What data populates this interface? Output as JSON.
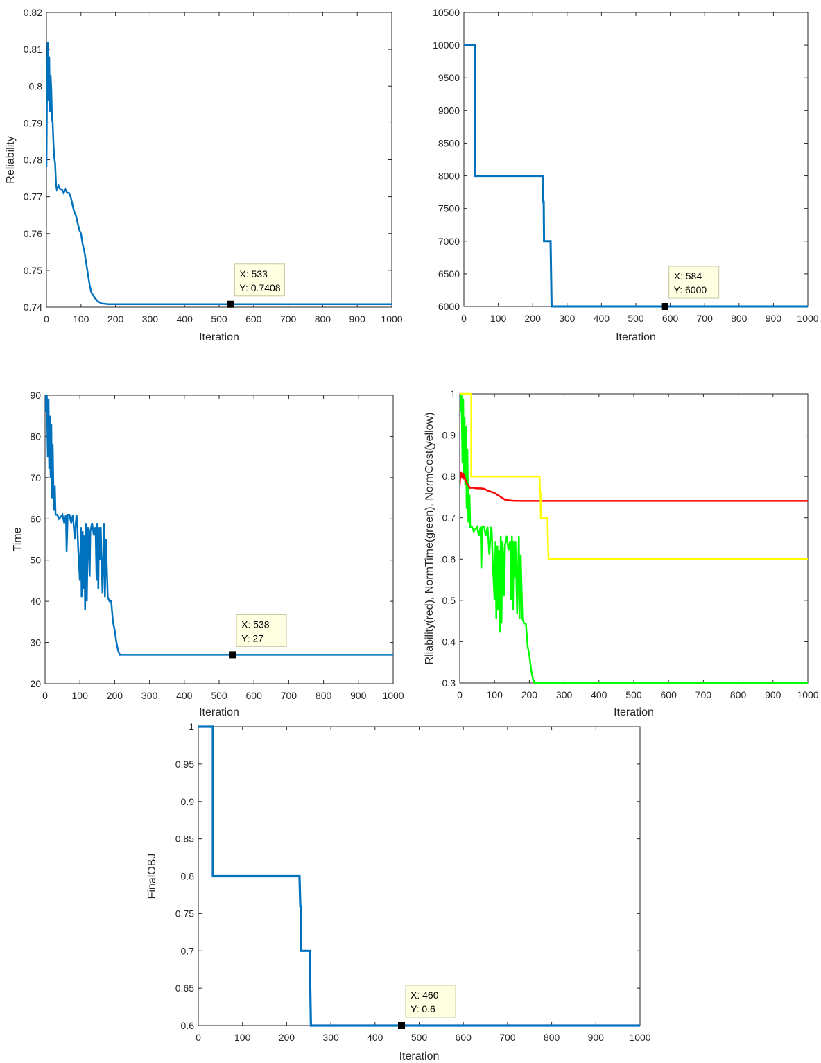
{
  "chart_data": [
    {
      "id": "reliability",
      "type": "line",
      "xlabel": "Iteration",
      "ylabel": "Reliability",
      "xlim": [
        0,
        1000
      ],
      "ylim": [
        0.74,
        0.82
      ],
      "xticks": [
        "0",
        "100",
        "200",
        "300",
        "400",
        "500",
        "600",
        "700",
        "800",
        "900",
        "1000"
      ],
      "yticks": [
        "0.74",
        "0.75",
        "0.76",
        "0.77",
        "0.78",
        "0.79",
        "0.8",
        "0.81",
        "0.82"
      ],
      "xtick_values": [
        0,
        100,
        200,
        300,
        400,
        500,
        600,
        700,
        800,
        900,
        1000
      ],
      "ytick_values": [
        0.74,
        0.75,
        0.76,
        0.77,
        0.78,
        0.79,
        0.8,
        0.81,
        0.82
      ],
      "grid": false,
      "series": [
        {
          "color": "#0072bd",
          "x": [
            0,
            2,
            4,
            6,
            8,
            10,
            12,
            14,
            16,
            18,
            20,
            22,
            25,
            28,
            30,
            35,
            40,
            45,
            50,
            55,
            60,
            65,
            70,
            75,
            80,
            85,
            90,
            95,
            100,
            105,
            110,
            115,
            120,
            125,
            130,
            140,
            150,
            160,
            170,
            180,
            200,
            250,
            300,
            400,
            500,
            533,
            600,
            700,
            800,
            900,
            1000
          ],
          "y": [
            0.778,
            0.805,
            0.812,
            0.796,
            0.808,
            0.793,
            0.803,
            0.799,
            0.791,
            0.79,
            0.785,
            0.781,
            0.779,
            0.773,
            0.772,
            0.773,
            0.772,
            0.772,
            0.771,
            0.772,
            0.771,
            0.771,
            0.77,
            0.768,
            0.766,
            0.765,
            0.763,
            0.761,
            0.76,
            0.757,
            0.755,
            0.752,
            0.749,
            0.746,
            0.744,
            0.7425,
            0.7415,
            0.741,
            0.7409,
            0.7408,
            0.7408,
            0.7408,
            0.7408,
            0.7408,
            0.7408,
            0.7408,
            0.7408,
            0.7408,
            0.7408,
            0.7408,
            0.7408
          ]
        }
      ],
      "datatip": {
        "x_label": "X: 533",
        "y_label": "Y: 0.7408",
        "x": 533,
        "y": 0.7408
      }
    },
    {
      "id": "cost",
      "type": "line",
      "xlabel": "Iteration",
      "ylabel": "",
      "xlim": [
        0,
        1000
      ],
      "ylim": [
        6000,
        10500
      ],
      "xticks": [
        "0",
        "100",
        "200",
        "300",
        "400",
        "500",
        "600",
        "700",
        "800",
        "900",
        "1000"
      ],
      "yticks": [
        "6000",
        "6500",
        "7000",
        "7500",
        "8000",
        "8500",
        "9000",
        "9500",
        "10000",
        "10500"
      ],
      "xtick_values": [
        0,
        100,
        200,
        300,
        400,
        500,
        600,
        700,
        800,
        900,
        1000
      ],
      "ytick_values": [
        6000,
        6500,
        7000,
        7500,
        8000,
        8500,
        9000,
        9500,
        10000,
        10500
      ],
      "grid": false,
      "series": [
        {
          "color": "#0072bd",
          "x": [
            0,
            33,
            33,
            229,
            231,
            232,
            233,
            252,
            255,
            258,
            1000
          ],
          "y": [
            10000,
            10000,
            8000,
            8000,
            7600,
            7600,
            7000,
            7000,
            6000,
            6000,
            6000
          ]
        }
      ],
      "datatip": {
        "x_label": "X: 584",
        "y_label": "Y: 6000",
        "x": 584,
        "y": 6000
      }
    },
    {
      "id": "time",
      "type": "line",
      "xlabel": "Iteration",
      "ylabel": "Time",
      "xlim": [
        0,
        1000
      ],
      "ylim": [
        20,
        90
      ],
      "xticks": [
        "0",
        "100",
        "200",
        "300",
        "400",
        "500",
        "600",
        "700",
        "800",
        "900",
        "1000"
      ],
      "yticks": [
        "20",
        "30",
        "40",
        "50",
        "60",
        "70",
        "80",
        "90"
      ],
      "xtick_values": [
        0,
        100,
        200,
        300,
        400,
        500,
        600,
        700,
        800,
        900,
        1000
      ],
      "ytick_values": [
        20,
        30,
        40,
        50,
        60,
        70,
        80,
        90
      ],
      "grid": false,
      "series": [
        {
          "color": "#0072bd",
          "x": [
            0,
            3,
            5,
            8,
            10,
            12,
            14,
            16,
            18,
            20,
            22,
            25,
            28,
            30,
            35,
            40,
            50,
            55,
            60,
            62,
            65,
            70,
            75,
            80,
            85,
            90,
            92,
            95,
            100,
            103,
            105,
            108,
            110,
            113,
            115,
            118,
            120,
            123,
            125,
            128,
            130,
            135,
            140,
            145,
            148,
            150,
            153,
            155,
            158,
            160,
            165,
            170,
            172,
            175,
            180,
            185,
            190,
            195,
            200,
            205,
            210,
            215,
            220,
            225,
            230,
            235,
            240,
            245,
            250,
            255,
            300,
            400,
            500,
            538,
            600,
            700,
            800,
            900,
            1000
          ],
          "y": [
            90,
            86,
            90,
            75,
            89,
            72,
            85,
            70,
            83,
            65,
            78,
            62,
            68,
            61,
            61,
            60,
            61,
            59,
            61,
            52,
            61,
            61,
            59,
            61,
            55,
            61,
            60,
            53,
            45,
            58,
            41,
            57,
            43,
            56,
            38,
            59,
            40,
            58,
            55,
            46,
            57,
            59,
            56,
            58,
            45,
            59,
            43,
            58,
            50,
            58,
            42,
            59,
            41,
            55,
            41,
            40,
            40,
            35,
            33,
            30,
            28,
            27,
            27,
            27,
            27,
            27,
            27,
            27,
            27,
            27,
            27,
            27,
            27,
            27,
            27,
            27,
            27,
            27,
            27
          ]
        }
      ],
      "datatip": {
        "x_label": "X: 538",
        "y_label": "Y: 27",
        "x": 538,
        "y": 27
      }
    },
    {
      "id": "normalized",
      "type": "line",
      "xlabel": "Iteration",
      "ylabel": "Rliability(red),    NormTime(green),    NormCost(yellow)",
      "xlim": [
        0,
        1000
      ],
      "ylim": [
        0.3,
        1
      ],
      "xticks": [
        "0",
        "100",
        "200",
        "300",
        "400",
        "500",
        "600",
        "700",
        "800",
        "900",
        "1000"
      ],
      "yticks": [
        "0.3",
        "0.4",
        "0.5",
        "0.6",
        "0.7",
        "0.8",
        "0.9",
        "1"
      ],
      "xtick_values": [
        0,
        100,
        200,
        300,
        400,
        500,
        600,
        700,
        800,
        900,
        1000
      ],
      "ytick_values": [
        0.3,
        0.4,
        0.5,
        0.6,
        0.7,
        0.8,
        0.9,
        1.0
      ],
      "grid": false,
      "series": [
        {
          "color": "#00ff00",
          "x": [
            0,
            3,
            5,
            8,
            10,
            12,
            14,
            16,
            18,
            20,
            22,
            25,
            28,
            30,
            35,
            40,
            50,
            55,
            60,
            62,
            65,
            70,
            75,
            80,
            85,
            90,
            92,
            95,
            100,
            103,
            105,
            108,
            110,
            113,
            115,
            118,
            120,
            123,
            125,
            128,
            130,
            135,
            140,
            145,
            148,
            150,
            153,
            155,
            158,
            160,
            165,
            170,
            172,
            175,
            180,
            185,
            190,
            195,
            200,
            205,
            210,
            215,
            220,
            225,
            230,
            235,
            240,
            245,
            250,
            255,
            300,
            400,
            500,
            600,
            700,
            800,
            900,
            1000
          ],
          "y": [
            1.0,
            0.956,
            1.0,
            0.833,
            0.989,
            0.8,
            0.944,
            0.778,
            0.922,
            0.722,
            0.867,
            0.689,
            0.756,
            0.678,
            0.678,
            0.667,
            0.678,
            0.656,
            0.678,
            0.578,
            0.678,
            0.678,
            0.656,
            0.678,
            0.611,
            0.678,
            0.667,
            0.589,
            0.5,
            0.644,
            0.456,
            0.633,
            0.478,
            0.622,
            0.422,
            0.656,
            0.444,
            0.644,
            0.611,
            0.511,
            0.633,
            0.656,
            0.622,
            0.644,
            0.5,
            0.656,
            0.478,
            0.644,
            0.556,
            0.644,
            0.467,
            0.656,
            0.456,
            0.611,
            0.456,
            0.444,
            0.444,
            0.389,
            0.367,
            0.333,
            0.311,
            0.3,
            0.3,
            0.3,
            0.3,
            0.3,
            0.3,
            0.3,
            0.3,
            0.3,
            0.3,
            0.3,
            0.3,
            0.3,
            0.3,
            0.3,
            0.3,
            0.3
          ]
        },
        {
          "color": "#ff0000",
          "x": [
            0,
            2,
            4,
            6,
            8,
            10,
            12,
            14,
            16,
            18,
            20,
            22,
            25,
            28,
            30,
            35,
            40,
            50,
            60,
            70,
            80,
            90,
            100,
            110,
            120,
            130,
            140,
            150,
            160,
            170,
            180,
            200,
            250,
            300,
            400,
            500,
            600,
            700,
            800,
            900,
            1000
          ],
          "y": [
            0.778,
            0.805,
            0.812,
            0.796,
            0.808,
            0.793,
            0.803,
            0.799,
            0.791,
            0.79,
            0.785,
            0.781,
            0.779,
            0.773,
            0.772,
            0.773,
            0.772,
            0.771,
            0.771,
            0.77,
            0.766,
            0.763,
            0.76,
            0.755,
            0.749,
            0.744,
            0.7425,
            0.7415,
            0.741,
            0.7409,
            0.7408,
            0.7408,
            0.7408,
            0.7408,
            0.7408,
            0.7408,
            0.7408,
            0.7408,
            0.7408,
            0.7408,
            0.7408
          ]
        },
        {
          "color": "#ffff00",
          "x": [
            0,
            33,
            33,
            229,
            231,
            232,
            233,
            252,
            255,
            258,
            1000
          ],
          "y": [
            1.0,
            1.0,
            0.8,
            0.8,
            0.76,
            0.76,
            0.7,
            0.7,
            0.6,
            0.6,
            0.6
          ]
        }
      ],
      "datatip": null
    },
    {
      "id": "finalobj",
      "type": "line",
      "xlabel": "Iteration",
      "ylabel": "FinalOBJ",
      "xlim": [
        0,
        1000
      ],
      "ylim": [
        0.6,
        1
      ],
      "xticks": [
        "0",
        "100",
        "200",
        "300",
        "400",
        "500",
        "600",
        "700",
        "800",
        "900",
        "1000"
      ],
      "yticks": [
        "0.6",
        "0.65",
        "0.7",
        "0.75",
        "0.8",
        "0.85",
        "0.9",
        "0.95",
        "1"
      ],
      "xtick_values": [
        0,
        100,
        200,
        300,
        400,
        500,
        600,
        700,
        800,
        900,
        1000
      ],
      "ytick_values": [
        0.6,
        0.65,
        0.7,
        0.75,
        0.8,
        0.85,
        0.9,
        0.95,
        1.0
      ],
      "grid": false,
      "series": [
        {
          "color": "#0072bd",
          "x": [
            0,
            33,
            33,
            229,
            231,
            232,
            233,
            252,
            255,
            258,
            1000
          ],
          "y": [
            1.0,
            1.0,
            0.8,
            0.8,
            0.76,
            0.76,
            0.7,
            0.7,
            0.6,
            0.6,
            0.6
          ]
        }
      ],
      "datatip": {
        "x_label": "X: 460",
        "y_label": "Y: 0.6",
        "x": 460,
        "y": 0.6
      }
    }
  ]
}
